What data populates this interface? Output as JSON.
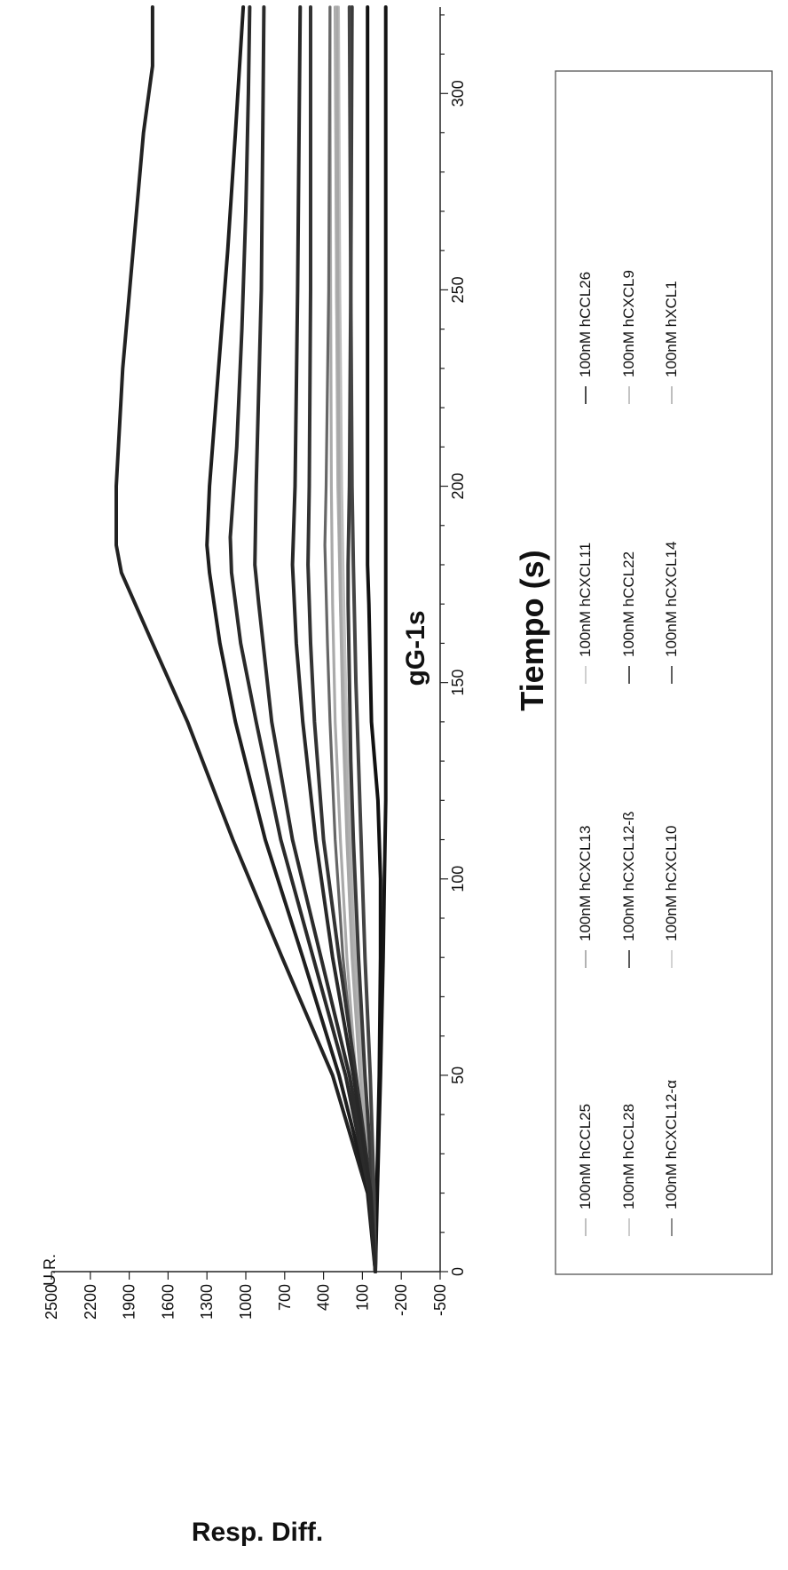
{
  "chart_data": {
    "type": "line",
    "title": "gG-1s",
    "xlabel": "Tiempo (s)",
    "ylabel": "Resp. Diff.",
    "y_unit": "U.R.",
    "xlim": [
      0,
      322
    ],
    "ylim": [
      -500,
      2500
    ],
    "x_ticks": [
      0,
      50,
      100,
      150,
      200,
      250,
      300
    ],
    "y_ticks": [
      2500,
      2200,
      1900,
      1600,
      1300,
      1000,
      700,
      400,
      100,
      -200,
      -500
    ],
    "orientation": "rotated-90-clockwise",
    "legend_position": "bottom",
    "series": [
      {
        "name": "100nM hCCL25",
        "color": "#aaaaaa",
        "points": [
          [
            0,
            0
          ],
          [
            20,
            40
          ],
          [
            50,
            150
          ],
          [
            80,
            220
          ],
          [
            110,
            270
          ],
          [
            140,
            310
          ],
          [
            170,
            330
          ],
          [
            200,
            340
          ],
          [
            250,
            345
          ],
          [
            322,
            350
          ]
        ]
      },
      {
        "name": "100nM hCCL28",
        "color": "#bbbbbb",
        "points": [
          [
            0,
            0
          ],
          [
            20,
            30
          ],
          [
            50,
            110
          ],
          [
            80,
            160
          ],
          [
            110,
            190
          ],
          [
            130,
            210
          ],
          [
            150,
            230
          ],
          [
            180,
            250
          ],
          [
            200,
            260
          ],
          [
            250,
            275
          ],
          [
            322,
            285
          ]
        ]
      },
      {
        "name": "100nM hCXCL12-α",
        "color": "#666666",
        "points": [
          [
            0,
            0
          ],
          [
            20,
            40
          ],
          [
            50,
            160
          ],
          [
            80,
            250
          ],
          [
            110,
            310
          ],
          [
            140,
            350
          ],
          [
            160,
            370
          ],
          [
            185,
            390
          ],
          [
            200,
            380
          ],
          [
            250,
            360
          ],
          [
            322,
            350
          ]
        ]
      },
      {
        "name": "100nM hCXCL13",
        "color": "#999999",
        "points": [
          [
            0,
            0
          ],
          [
            20,
            30
          ],
          [
            50,
            110
          ],
          [
            80,
            170
          ],
          [
            110,
            200
          ],
          [
            140,
            230
          ],
          [
            170,
            260
          ],
          [
            200,
            280
          ],
          [
            250,
            300
          ],
          [
            322,
            310
          ]
        ]
      },
      {
        "name": "100nM hCXCL12-ß",
        "color": "#222222",
        "points": [
          [
            0,
            0
          ],
          [
            20,
            60
          ],
          [
            50,
            330
          ],
          [
            80,
            720
          ],
          [
            110,
            1100
          ],
          [
            140,
            1450
          ],
          [
            160,
            1720
          ],
          [
            178,
            1960
          ],
          [
            185,
            2000
          ],
          [
            200,
            2000
          ],
          [
            230,
            1950
          ],
          [
            260,
            1870
          ],
          [
            290,
            1790
          ],
          [
            307,
            1720
          ],
          [
            322,
            1720
          ]
        ]
      },
      {
        "name": "100nM hCXCL10",
        "color": "#c4c4c4",
        "points": [
          [
            0,
            0
          ],
          [
            20,
            25
          ],
          [
            50,
            90
          ],
          [
            80,
            140
          ],
          [
            110,
            180
          ],
          [
            140,
            220
          ],
          [
            170,
            250
          ],
          [
            200,
            270
          ],
          [
            250,
            290
          ],
          [
            322,
            295
          ]
        ]
      },
      {
        "name": "100nM hCXCL11",
        "color": "#bfbfbf",
        "points": [
          [
            0,
            0
          ],
          [
            20,
            30
          ],
          [
            50,
            100
          ],
          [
            80,
            150
          ],
          [
            110,
            190
          ],
          [
            140,
            230
          ],
          [
            170,
            260
          ],
          [
            200,
            270
          ],
          [
            250,
            280
          ],
          [
            322,
            290
          ]
        ]
      },
      {
        "name": "100nM hCCL22",
        "color": "#1e1e1e",
        "points": [
          [
            0,
            0
          ],
          [
            20,
            50
          ],
          [
            50,
            280
          ],
          [
            80,
            560
          ],
          [
            110,
            850
          ],
          [
            140,
            1080
          ],
          [
            160,
            1200
          ],
          [
            178,
            1280
          ],
          [
            185,
            1300
          ],
          [
            200,
            1280
          ],
          [
            230,
            1210
          ],
          [
            260,
            1140
          ],
          [
            290,
            1080
          ],
          [
            322,
            1020
          ]
        ]
      },
      {
        "name": "100nM hCXCL14",
        "color": "#2a2a2a",
        "points": [
          [
            0,
            0
          ],
          [
            20,
            45
          ],
          [
            50,
            230
          ],
          [
            80,
            480
          ],
          [
            110,
            730
          ],
          [
            140,
            920
          ],
          [
            160,
            1040
          ],
          [
            178,
            1110
          ],
          [
            187,
            1120
          ],
          [
            210,
            1070
          ],
          [
            240,
            1030
          ],
          [
            270,
            1000
          ],
          [
            300,
            980
          ],
          [
            322,
            970
          ]
        ]
      },
      {
        "name": "100nM hCCL26",
        "color": "#111111",
        "points": [
          [
            0,
            0
          ],
          [
            20,
            -10
          ],
          [
            50,
            -30
          ],
          [
            80,
            -40
          ],
          [
            100,
            -40
          ],
          [
            120,
            -20
          ],
          [
            140,
            30
          ],
          [
            170,
            50
          ],
          [
            180,
            60
          ],
          [
            200,
            60
          ],
          [
            250,
            60
          ],
          [
            322,
            60
          ]
        ]
      },
      {
        "name": "100nM hCXCL9",
        "color": "#b0b0b0",
        "points": [
          [
            0,
            0
          ],
          [
            20,
            28
          ],
          [
            50,
            100
          ],
          [
            80,
            160
          ],
          [
            110,
            200
          ],
          [
            140,
            240
          ],
          [
            170,
            270
          ],
          [
            200,
            290
          ],
          [
            250,
            300
          ],
          [
            322,
            305
          ]
        ]
      },
      {
        "name": "100nM hXCL1",
        "color": "#a8a8a8",
        "points": [
          [
            0,
            0
          ],
          [
            20,
            30
          ],
          [
            50,
            120
          ],
          [
            80,
            180
          ],
          [
            110,
            220
          ],
          [
            140,
            250
          ],
          [
            170,
            270
          ],
          [
            200,
            280
          ],
          [
            250,
            290
          ],
          [
            322,
            295
          ]
        ]
      },
      {
        "points": [
          [
            0,
            0
          ],
          [
            20,
            40
          ],
          [
            50,
            200
          ],
          [
            80,
            420
          ],
          [
            110,
            640
          ],
          [
            140,
            800
          ],
          [
            170,
            900
          ],
          [
            180,
            930
          ],
          [
            200,
            920
          ],
          [
            250,
            880
          ],
          [
            322,
            860
          ]
        ],
        "color": "#2b2b2b"
      },
      {
        "points": [
          [
            0,
            0
          ],
          [
            20,
            30
          ],
          [
            50,
            150
          ],
          [
            80,
            280
          ],
          [
            110,
            400
          ],
          [
            140,
            470
          ],
          [
            160,
            500
          ],
          [
            180,
            520
          ],
          [
            200,
            510
          ],
          [
            250,
            500
          ],
          [
            322,
            500
          ]
        ],
        "color": "#333333"
      },
      {
        "points": [
          [
            0,
            0
          ],
          [
            20,
            20
          ],
          [
            50,
            80
          ],
          [
            80,
            130
          ],
          [
            110,
            170
          ],
          [
            130,
            190
          ],
          [
            150,
            200
          ],
          [
            170,
            210
          ],
          [
            180,
            210
          ],
          [
            200,
            200
          ],
          [
            250,
            190
          ],
          [
            322,
            180
          ]
        ],
        "color": "#3a3a3a"
      },
      {
        "points": [
          [
            0,
            0
          ],
          [
            20,
            -15
          ],
          [
            50,
            -40
          ],
          [
            80,
            -60
          ],
          [
            100,
            -70
          ],
          [
            120,
            -80
          ],
          [
            130,
            -80
          ],
          [
            160,
            -80
          ],
          [
            200,
            -80
          ],
          [
            250,
            -80
          ],
          [
            322,
            -80
          ]
        ],
        "color": "#151515"
      },
      {
        "points": [
          [
            0,
            0
          ],
          [
            20,
            10
          ],
          [
            50,
            40
          ],
          [
            80,
            80
          ],
          [
            110,
            110
          ],
          [
            130,
            130
          ],
          [
            150,
            150
          ],
          [
            180,
            170
          ],
          [
            200,
            180
          ],
          [
            250,
            190
          ],
          [
            322,
            200
          ]
        ],
        "color": "#444444"
      },
      {
        "points": [
          [
            0,
            0
          ],
          [
            20,
            35
          ],
          [
            50,
            170
          ],
          [
            80,
            330
          ],
          [
            110,
            460
          ],
          [
            140,
            560
          ],
          [
            160,
            610
          ],
          [
            180,
            640
          ],
          [
            200,
            620
          ],
          [
            250,
            600
          ],
          [
            322,
            580
          ]
        ],
        "color": "#282828"
      }
    ]
  },
  "colors": {
    "background": "#ffffff",
    "axis": "#222222",
    "legend_border": "#555555"
  }
}
